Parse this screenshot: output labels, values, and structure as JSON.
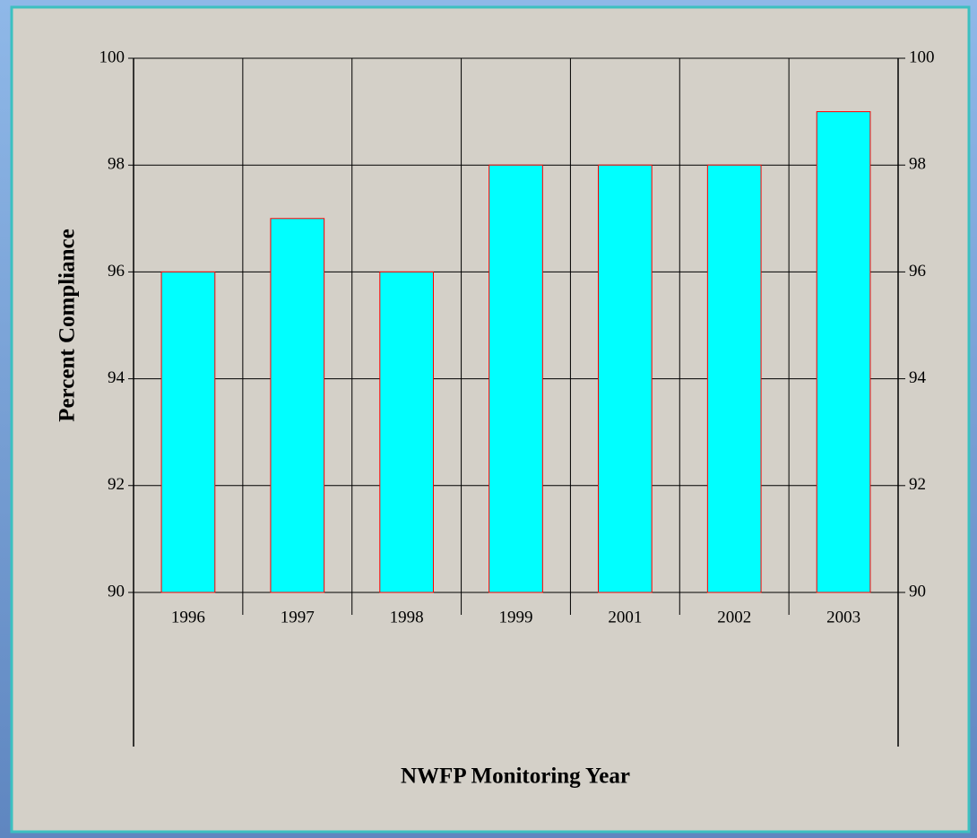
{
  "chart_data": {
    "type": "bar",
    "categories": [
      "1996",
      "1997",
      "1998",
      "1999",
      "2001",
      "2002",
      "2003"
    ],
    "values": [
      96,
      97,
      96,
      98,
      98,
      98,
      99
    ],
    "color": "#00ffff",
    "edge_color": "#ff0000",
    "ylim": [
      90,
      100
    ],
    "yticks": [
      90,
      92,
      94,
      96,
      98,
      100
    ],
    "y2lim": [
      90,
      100
    ],
    "y2ticks": [
      90,
      92,
      94,
      96,
      98,
      100
    ],
    "ylabel": "Percent Compliance",
    "xlabel": "NWFP Monitoring Year",
    "grid": true
  }
}
